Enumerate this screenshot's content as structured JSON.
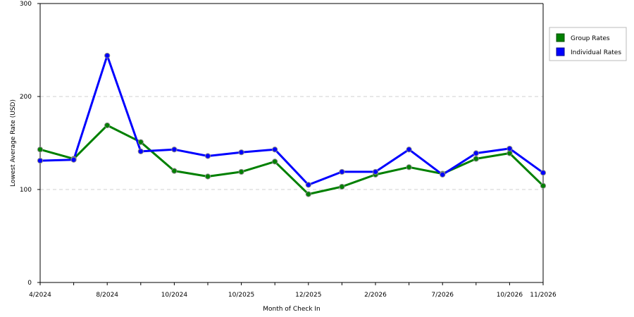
{
  "chart_data": {
    "type": "line",
    "xlabel": "Month of Check In",
    "ylabel": "Lowest Average Rate (USD)",
    "ylim": [
      0,
      300
    ],
    "yticks": [
      0,
      100,
      200,
      300
    ],
    "grid": "horizontal dashed",
    "legend_position": "right",
    "x_tick_labels": [
      {
        "index": 0,
        "label": "4/2024"
      },
      {
        "index": 2,
        "label": "8/2024"
      },
      {
        "index": 4,
        "label": "10/2024"
      },
      {
        "index": 6,
        "label": "10/2025"
      },
      {
        "index": 8,
        "label": "12/2025"
      },
      {
        "index": 10,
        "label": "2/2026"
      },
      {
        "index": 12,
        "label": "7/2026"
      },
      {
        "index": 14,
        "label": "10/2026"
      },
      {
        "index": 15,
        "label": "11/2026"
      }
    ],
    "point_count": 16,
    "series": [
      {
        "name": "Group Rates",
        "color": "#008000",
        "values": [
          143,
          133,
          169,
          151,
          120,
          114,
          119,
          130,
          95,
          103,
          116,
          124,
          117,
          133,
          139,
          104
        ]
      },
      {
        "name": "Individual Rates",
        "color": "#0000ff",
        "values": [
          131,
          132,
          244,
          141,
          143,
          136,
          140,
          143,
          105,
          119,
          119,
          143,
          116,
          139,
          144,
          118
        ]
      }
    ]
  }
}
